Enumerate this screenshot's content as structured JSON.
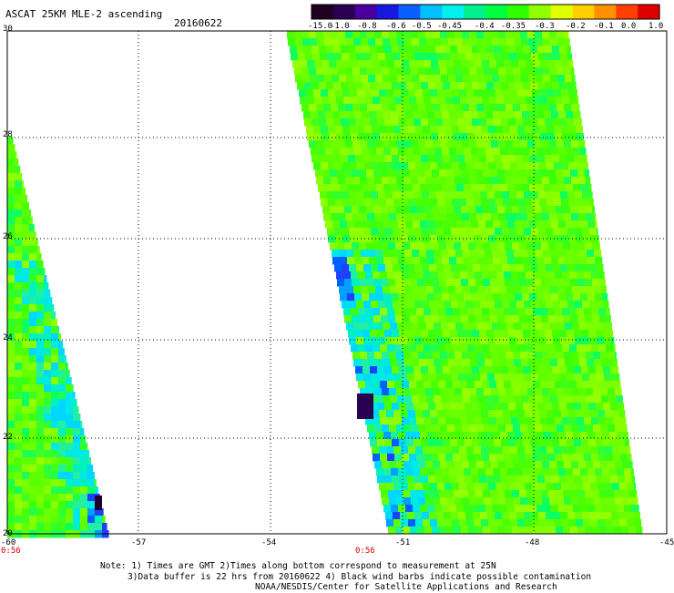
{
  "header": {
    "title": "ASCAT 25KM MLE-2 ascending",
    "date": "20160622"
  },
  "colorbar": {
    "labels": [
      "-15.0",
      "-1.0",
      "-0.8",
      "-0.6",
      "-0.5",
      "-0.45",
      "-0.4",
      "-0.35",
      "-0.3",
      "-0.2",
      "-0.1",
      "0.0",
      "1.0"
    ],
    "colors": [
      "#200020",
      "#2a0050",
      "#4a00a0",
      "#1818e0",
      "#0a60ff",
      "#00c0ff",
      "#00f0f0",
      "#00f090",
      "#00ff40",
      "#30ff00",
      "#90ff00",
      "#e0ff00",
      "#ffd000",
      "#ff9000",
      "#ff4000",
      "#e00000"
    ]
  },
  "axes": {
    "x_ticks": [
      "-60",
      "-57",
      "-54",
      "-51",
      "-48",
      "-45"
    ],
    "y_ticks": [
      "30",
      "28",
      "26",
      "24",
      "22",
      "20"
    ],
    "time_labels": [
      "0:56",
      "0:56"
    ]
  },
  "notes": {
    "line1": "Note: 1) Times are GMT 2)Times along bottom correspond to measurement at 25N",
    "line2": "3)Data buffer is 22 hrs from 20160622 4) Black wind barbs indicate possible contamination",
    "line3": "NOAA/NESDIS/Center for Satellite Applications and Research"
  }
}
